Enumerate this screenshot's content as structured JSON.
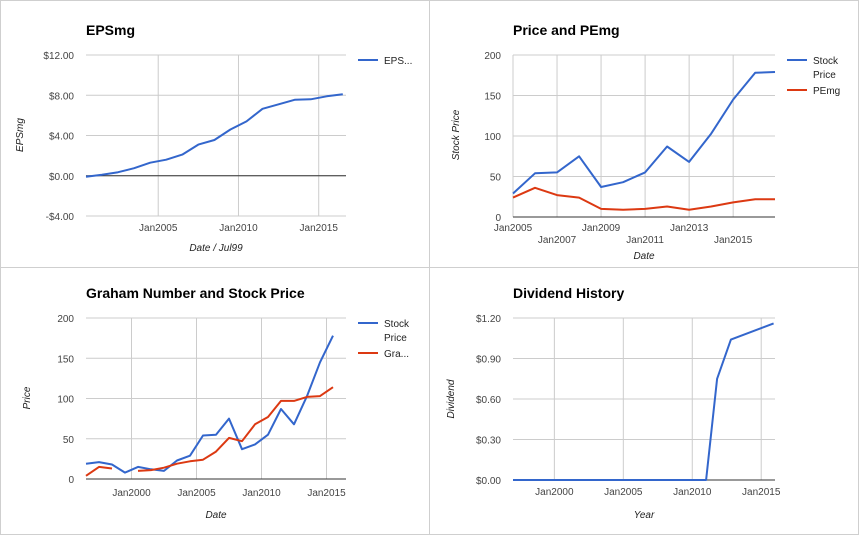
{
  "chart_data": [
    {
      "type": "line",
      "title": "EPSmg",
      "xlabel": "Date / Jul99",
      "ylabel": "EPSmg",
      "x": [
        2000.5,
        2001.5,
        2002.5,
        2003.5,
        2004.5,
        2005.5,
        2006.5,
        2007.5,
        2008.5,
        2009.5,
        2010.5,
        2011.5,
        2012.5,
        2013.5,
        2014.5,
        2015.5,
        2016.5
      ],
      "xlim": [
        2000.5,
        2016.7
      ],
      "ylim": [
        -4,
        12
      ],
      "yticks": [
        -4,
        0,
        4,
        8,
        12
      ],
      "ytick_labels": [
        "-$4.00",
        "$0.00",
        "$4.00",
        "$8.00",
        "$12.00"
      ],
      "xticks": [
        2005,
        2010,
        2015
      ],
      "xtick_labels": [
        "Jan2005",
        "Jan2010",
        "Jan2015"
      ],
      "x_grid": true,
      "zero_line": true,
      "legend_position": "right",
      "series": [
        {
          "name": "EPS...",
          "color": "#3366cc",
          "values": [
            -0.1,
            0.1,
            0.35,
            0.75,
            1.3,
            1.6,
            2.1,
            3.1,
            3.55,
            4.6,
            5.4,
            6.65,
            7.1,
            7.55,
            7.6,
            7.9,
            8.1
          ]
        }
      ]
    },
    {
      "type": "line",
      "title": "Price and PEmg",
      "xlabel": "Date",
      "ylabel": "Stock Price",
      "x": [
        2005,
        2006,
        2007,
        2008,
        2009,
        2010,
        2011,
        2012,
        2013,
        2014,
        2015,
        2016,
        2016.9
      ],
      "xlim": [
        2005,
        2016.9
      ],
      "ylim": [
        0,
        200
      ],
      "yticks": [
        0,
        50,
        100,
        150,
        200
      ],
      "ytick_labels": [
        "0",
        "50",
        "100",
        "150",
        "200"
      ],
      "xticks": [
        2005,
        2007,
        2009,
        2011,
        2013,
        2015
      ],
      "xtick_labels": [
        "Jan2005",
        "Jan2007",
        "Jan2009",
        "Jan2011",
        "Jan2013",
        "Jan2015"
      ],
      "x_grid": true,
      "legend_position": "right",
      "series": [
        {
          "name": "Stock Price",
          "color": "#3366cc",
          "values": [
            29,
            54,
            55,
            75,
            37,
            43,
            55,
            87,
            68,
            103,
            145,
            178,
            179
          ]
        },
        {
          "name": "PEmg",
          "color": "#dc3912",
          "values": [
            24,
            36,
            27,
            24,
            10,
            9,
            10,
            13,
            9,
            13,
            18,
            22,
            22
          ]
        }
      ]
    },
    {
      "type": "line",
      "title": "Graham Number and Stock Price",
      "xlabel": "Date",
      "ylabel": "Price",
      "x": [
        1996.5,
        1997.5,
        1998.5,
        1999.5,
        2000.5,
        2001.5,
        2002.5,
        2003.5,
        2004.5,
        2005.5,
        2006.5,
        2007.5,
        2008.5,
        2009.5,
        2010.5,
        2011.5,
        2012.5,
        2013.5,
        2014.5,
        2015.5,
        2016.5
      ],
      "xlim": [
        1996.5,
        2016.5
      ],
      "ylim": [
        0,
        200
      ],
      "yticks": [
        0,
        50,
        100,
        150,
        200
      ],
      "ytick_labels": [
        "0",
        "50",
        "100",
        "150",
        "200"
      ],
      "xticks": [
        2000,
        2005,
        2010,
        2015
      ],
      "xtick_labels": [
        "Jan2000",
        "Jan2005",
        "Jan2010",
        "Jan2015"
      ],
      "x_grid": true,
      "legend_position": "right",
      "series": [
        {
          "name": "Stock Price",
          "color": "#3366cc",
          "values": [
            19,
            21,
            18,
            8,
            15,
            12,
            10,
            23,
            29,
            54,
            55,
            75,
            37,
            43,
            55,
            87,
            68,
            103,
            145,
            178,
            null
          ]
        },
        {
          "name": "Gra...",
          "color": "#dc3912",
          "values": [
            4,
            15,
            13,
            null,
            10,
            11,
            14,
            19,
            22,
            24,
            34,
            51,
            47,
            68,
            77,
            97,
            97,
            102,
            103,
            114,
            null
          ]
        }
      ]
    },
    {
      "type": "line",
      "title": "Dividend History",
      "xlabel": "Year",
      "ylabel": "Dividend",
      "x": [
        1997,
        2000,
        2005,
        2010,
        2011,
        2011.8,
        2012.8,
        2015.9
      ],
      "xlim": [
        1997,
        2016
      ],
      "ylim": [
        0,
        1.2
      ],
      "yticks": [
        0,
        0.3,
        0.6,
        0.9,
        1.2
      ],
      "ytick_labels": [
        "$0.00",
        "$0.30",
        "$0.60",
        "$0.90",
        "$1.20"
      ],
      "xticks": [
        2000,
        2005,
        2010,
        2015
      ],
      "xtick_labels": [
        "Jan2000",
        "Jan2005",
        "Jan2010",
        "Jan2015"
      ],
      "x_grid": true,
      "legend_position": "none",
      "series": [
        {
          "name": "",
          "color": "#3366cc",
          "values": [
            0,
            0,
            0,
            0,
            0,
            0.75,
            1.04,
            1.16
          ]
        }
      ]
    }
  ]
}
